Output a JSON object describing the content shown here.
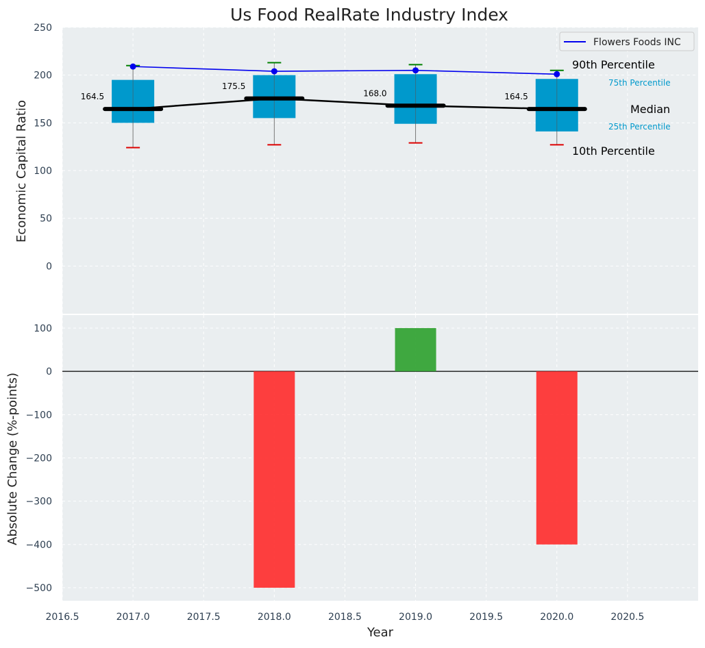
{
  "chart_data": [
    {
      "type": "box",
      "title": "Us Food RealRate Industry Index",
      "xlabel": "",
      "ylabel": "Economic Capital Ratio",
      "ylim": [
        -50,
        250
      ],
      "yticks": [
        0,
        50,
        100,
        150,
        200,
        250
      ],
      "xlim": [
        2016.5,
        2021.0
      ],
      "grid": true,
      "legend": {
        "placement": "top-right",
        "entries": [
          "Flowers Foods INC"
        ]
      },
      "x": [
        2017,
        2018,
        2019,
        2020
      ],
      "boxes": [
        {
          "year": 2017,
          "p10": 124,
          "p25": 150,
          "median": 164.5,
          "p75": 195,
          "p90": 210,
          "median_label": "164.5"
        },
        {
          "year": 2018,
          "p10": 127,
          "p25": 155,
          "median": 175.5,
          "p75": 200,
          "p90": 213,
          "median_label": "175.5"
        },
        {
          "year": 2019,
          "p10": 129,
          "p25": 149,
          "median": 168.0,
          "p75": 201,
          "p90": 211,
          "median_label": "168.0"
        },
        {
          "year": 2020,
          "p10": 127,
          "p25": 141,
          "median": 164.5,
          "p75": 196,
          "p90": 205,
          "median_label": "164.5"
        }
      ],
      "series": [
        {
          "name": "Flowers Foods INC",
          "values": [
            209,
            204,
            205,
            201
          ],
          "color": "#0000ee"
        }
      ],
      "annotations": {
        "p90": "90th Percentile",
        "p75": "75th Percentile",
        "median": "Median",
        "p25": "25th Percentile",
        "p10": "10th Percentile"
      },
      "colors": {
        "box": "#0099cc",
        "median": "#000000",
        "p90_cap": "#008000",
        "p10_cap": "#dd0000",
        "series": "#0000ee",
        "panel_bg": "#eaeef0"
      }
    },
    {
      "type": "bar",
      "xlabel": "Year",
      "ylabel": "Absolute Change (%-points)",
      "ylim": [
        -530,
        130
      ],
      "yticks": [
        -500,
        -400,
        -300,
        -200,
        -100,
        0,
        100
      ],
      "xlim": [
        2016.5,
        2021.0
      ],
      "xticks": [
        "2016.5",
        "2017.0",
        "2017.5",
        "2018.0",
        "2018.5",
        "2019.0",
        "2019.5",
        "2020.0",
        "2020.5"
      ],
      "grid": true,
      "x": [
        2018,
        2019,
        2020
      ],
      "values": [
        -500,
        100,
        -400
      ],
      "colors": {
        "positive": "#2ca02c",
        "negative": "#ff2a2a"
      }
    }
  ]
}
